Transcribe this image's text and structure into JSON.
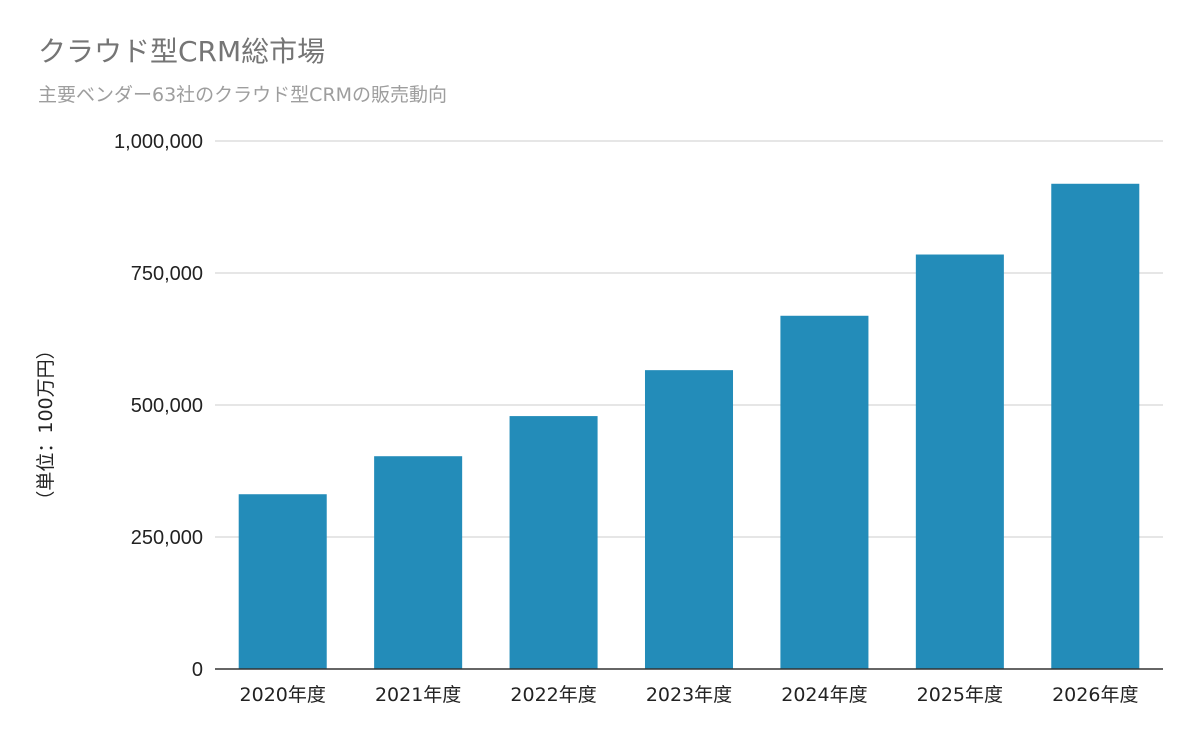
{
  "chart_data": {
    "type": "bar",
    "title": "クラウド型CRM総市場",
    "subtitle": "主要ベンダー63社のクラウド型CRMの販売動向",
    "xlabel": "",
    "ylabel": "（単位：100万円）",
    "categories": [
      "2020年度",
      "2021年度",
      "2022年度",
      "2023年度",
      "2024年度",
      "2025年度",
      "2026年度"
    ],
    "values": [
      331000,
      403000,
      479000,
      566000,
      669000,
      785000,
      919000
    ],
    "ylim": [
      0,
      1000000
    ],
    "yticks": [
      0,
      250000,
      500000,
      750000,
      1000000
    ],
    "ytick_labels": [
      "0",
      "250,000",
      "500,000",
      "750,000",
      "1,000,000"
    ],
    "grid": true,
    "legend": "none",
    "colors": {
      "bar": "#238CB9",
      "grid": "#cccccc",
      "axis": "#333333",
      "title": "#757575",
      "subtitle": "#9e9e9e"
    }
  }
}
